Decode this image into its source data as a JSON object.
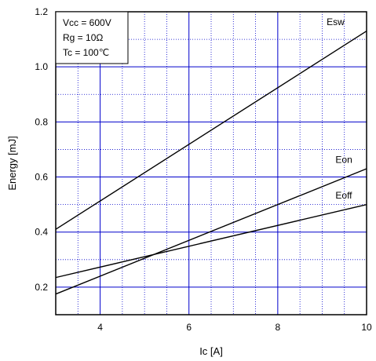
{
  "chart_data": {
    "type": "line",
    "xlabel": "Ic [A]",
    "ylabel": "Energy [mJ]",
    "xlim": [
      3,
      10
    ],
    "ylim": [
      0.1,
      1.2
    ],
    "x_ticks": [
      4,
      6,
      8,
      10
    ],
    "x_tick_labels": [
      "4",
      "6",
      "8",
      "10"
    ],
    "y_ticks": [
      0.2,
      0.4,
      0.6,
      0.8,
      1.0,
      1.2
    ],
    "y_tick_labels": [
      "0.2",
      "0.4",
      "0.6",
      "0.8",
      "1.0",
      "1.2"
    ],
    "major_grid_x": [
      4,
      6,
      8
    ],
    "major_grid_y": [
      0.2,
      0.4,
      0.6,
      0.8,
      1.0
    ],
    "minor_grid_x": [
      3.5,
      4.5,
      5,
      5.5,
      6.5,
      7,
      7.5,
      8.5,
      9,
      9.5
    ],
    "minor_grid_y": [
      0.3,
      0.5,
      0.7,
      0.9,
      1.1
    ],
    "grid": true,
    "conditions": [
      "Vcc = 600V",
      "Rg = 10Ω",
      "Tc = 100℃"
    ],
    "legend_position": "top-left",
    "series": [
      {
        "name": "Esw",
        "x": [
          3,
          10
        ],
        "y": [
          0.41,
          1.13
        ],
        "label_x": 9.1,
        "label_y": 1.14
      },
      {
        "name": "Eon",
        "x": [
          3,
          10
        ],
        "y": [
          0.175,
          0.63
        ],
        "label_x": 9.3,
        "label_y": 0.64
      },
      {
        "name": "Eoff",
        "x": [
          3,
          10
        ],
        "y": [
          0.235,
          0.5
        ],
        "label_x": 9.3,
        "label_y": 0.51
      }
    ],
    "colors": {
      "grid": "#0000cc",
      "minor_grid": "#0000cc",
      "line": "#000000",
      "frame": "#000000"
    }
  }
}
